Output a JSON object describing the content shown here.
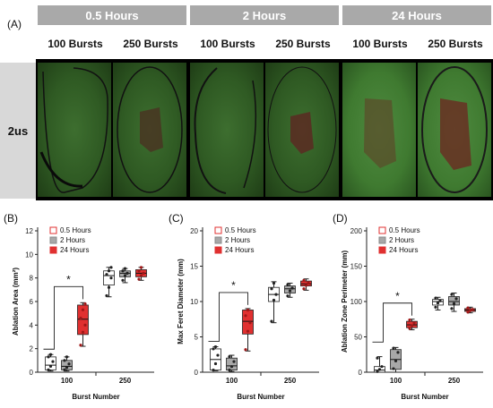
{
  "figure_a": {
    "label": "(A)",
    "time_headers": [
      "0.5 Hours",
      "2 Hours",
      "24 Hours"
    ],
    "burst_headers": [
      "100 Bursts",
      "250 Bursts",
      "100 Bursts",
      "250 Bursts",
      "100 Bursts",
      "250 Bursts"
    ],
    "row_label": "2us"
  },
  "chart_data": [
    {
      "panel": "(B)",
      "type": "box",
      "ylabel": "Ablation Area (mm²)",
      "xlabel": "Burst Number",
      "categories": [
        "100",
        "250"
      ],
      "ylim": [
        0,
        12
      ],
      "yticks": [
        0,
        2,
        4,
        6,
        8,
        10,
        12
      ],
      "legend": [
        "0.5 Hours",
        "2 Hours",
        "24 Hours"
      ],
      "legend_position": "top-left",
      "series": [
        {
          "name": "0.5 Hours",
          "color": "#ffffff",
          "stroke": "#e03030",
          "boxes": [
            {
              "min": 0.1,
              "q1": 0.2,
              "median": 0.6,
              "q3": 1.3,
              "max": 1.5,
              "points": [
                0.2,
                0.5,
                0.9,
                1.3,
                1.5
              ]
            },
            {
              "min": 6.4,
              "q1": 7.4,
              "median": 8.2,
              "q3": 8.6,
              "max": 8.9,
              "points": [
                6.5,
                7.2,
                8.0,
                8.3,
                8.6,
                8.9
              ]
            }
          ]
        },
        {
          "name": "2 Hours",
          "color": "#a8a8a8",
          "stroke": "#888888",
          "boxes": [
            {
              "min": 0.1,
              "q1": 0.2,
              "median": 0.5,
              "q3": 1.0,
              "max": 1.3,
              "points": [
                0.2,
                0.4,
                0.7,
                1.0,
                1.3
              ]
            },
            {
              "min": 7.6,
              "q1": 8.1,
              "median": 8.4,
              "q3": 8.6,
              "max": 8.8,
              "points": [
                7.8,
                8.2,
                8.4,
                8.6,
                8.8
              ]
            }
          ]
        },
        {
          "name": "24 Hours",
          "color": "#e03030",
          "stroke": "#e03030",
          "boxes": [
            {
              "min": 2.2,
              "q1": 3.2,
              "median": 4.5,
              "q3": 5.7,
              "max": 5.9,
              "points": [
                2.3,
                3.4,
                4.0,
                4.6,
                5.3,
                5.8
              ]
            },
            {
              "min": 7.8,
              "q1": 8.1,
              "median": 8.4,
              "q3": 8.7,
              "max": 8.9,
              "points": [
                7.9,
                8.2,
                8.4,
                8.6,
                8.9
              ]
            }
          ]
        }
      ],
      "significance": "*"
    },
    {
      "panel": "(C)",
      "type": "box",
      "ylabel": "Max Feret Diameter (mm)",
      "xlabel": "Burst Number",
      "categories": [
        "100",
        "250"
      ],
      "ylim": [
        0,
        20
      ],
      "yticks": [
        0,
        5,
        10,
        15,
        20
      ],
      "legend": [
        "0.5 Hours",
        "2 Hours",
        "24 Hours"
      ],
      "legend_position": "top-left",
      "series": [
        {
          "name": "0.5 Hours",
          "color": "#ffffff",
          "stroke": "#e03030",
          "boxes": [
            {
              "min": 0.2,
              "q1": 0.3,
              "median": 1.8,
              "q3": 3.3,
              "max": 3.6,
              "points": [
                0.3,
                1.2,
                2.4,
                3.3,
                3.6
              ]
            },
            {
              "min": 7.0,
              "q1": 10.0,
              "median": 11.0,
              "q3": 12.0,
              "max": 12.8,
              "points": [
                7.2,
                10.2,
                11.0,
                11.8,
                12.6
              ]
            }
          ]
        },
        {
          "name": "2 Hours",
          "color": "#a8a8a8",
          "stroke": "#888888",
          "boxes": [
            {
              "min": 0.1,
              "q1": 0.3,
              "median": 0.9,
              "q3": 2.0,
              "max": 2.4,
              "points": [
                0.3,
                0.8,
                1.5,
                2.2
              ]
            },
            {
              "min": 10.6,
              "q1": 11.2,
              "median": 11.8,
              "q3": 12.2,
              "max": 12.6,
              "points": [
                10.8,
                11.5,
                11.9,
                12.4
              ]
            }
          ]
        },
        {
          "name": "24 Hours",
          "color": "#e03030",
          "stroke": "#e03030",
          "boxes": [
            {
              "min": 3.0,
              "q1": 5.4,
              "median": 7.2,
              "q3": 8.8,
              "max": 9.0,
              "points": [
                3.2,
                5.8,
                7.0,
                8.0,
                8.8
              ]
            },
            {
              "min": 11.6,
              "q1": 12.2,
              "median": 12.5,
              "q3": 12.9,
              "max": 13.2,
              "points": [
                11.8,
                12.3,
                12.6,
                13.0
              ]
            }
          ]
        }
      ],
      "significance": "*"
    },
    {
      "panel": "(D)",
      "type": "box",
      "ylabel": "Ablation Zone Perimeter (mm)",
      "xlabel": "Burst Number",
      "categories": [
        "100",
        "250"
      ],
      "ylim": [
        0,
        200
      ],
      "yticks": [
        0,
        50,
        100,
        150,
        200
      ],
      "legend": [
        "0.5 Hours",
        "2 Hours",
        "24 Hours"
      ],
      "legend_position": "top-left",
      "series": [
        {
          "name": "0.5 Hours",
          "color": "#ffffff",
          "stroke": "#e03030",
          "boxes": [
            {
              "min": 0,
              "q1": 0,
              "median": 3,
              "q3": 8,
              "max": 22,
              "points": [
                1,
                4,
                8,
                20
              ]
            },
            {
              "min": 88,
              "q1": 95,
              "median": 100,
              "q3": 103,
              "max": 106,
              "points": [
                92,
                98,
                101,
                105
              ]
            }
          ]
        },
        {
          "name": "2 Hours",
          "color": "#a8a8a8",
          "stroke": "#888888",
          "boxes": [
            {
              "min": 0,
              "q1": 4,
              "median": 18,
              "q3": 32,
              "max": 35,
              "points": [
                5,
                16,
                28,
                34
              ]
            },
            {
              "min": 86,
              "q1": 95,
              "median": 100,
              "q3": 107,
              "max": 112,
              "points": [
                90,
                97,
                104,
                110
              ]
            }
          ]
        },
        {
          "name": "24 Hours",
          "color": "#e03030",
          "stroke": "#e03030",
          "boxes": [
            {
              "min": 60,
              "q1": 63,
              "median": 67,
              "q3": 72,
              "max": 75,
              "points": [
                62,
                66,
                70,
                74
              ]
            },
            {
              "min": 84,
              "q1": 86,
              "median": 88,
              "q3": 90,
              "max": 92,
              "points": [
                85,
                87,
                89,
                91
              ]
            }
          ]
        }
      ],
      "significance": "*"
    }
  ]
}
